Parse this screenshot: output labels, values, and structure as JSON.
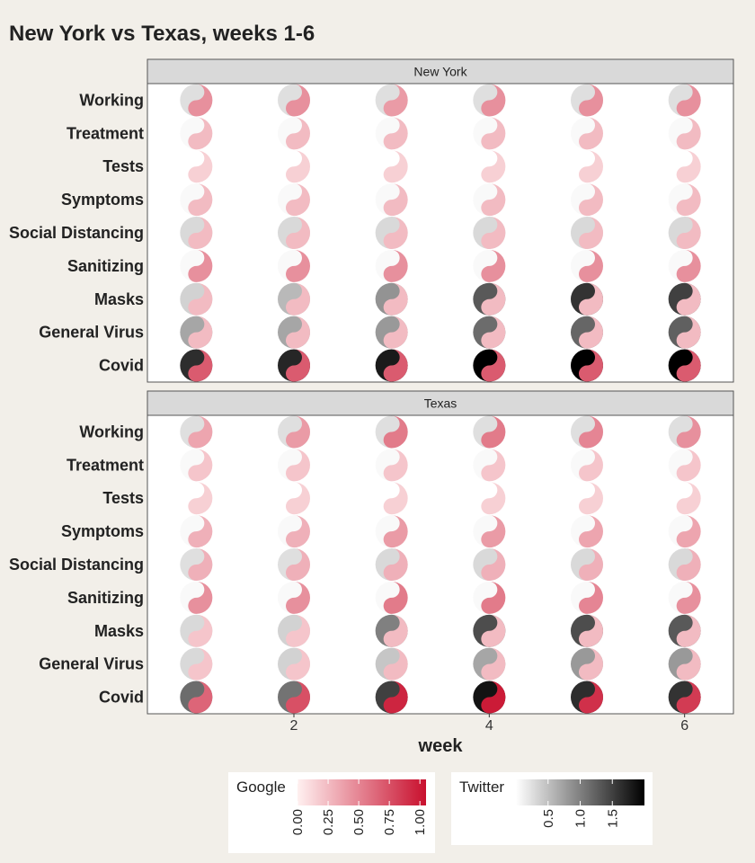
{
  "chart_data": {
    "type": "heatmap",
    "title": "New York vs Texas, weeks 1-6",
    "xlabel": "week",
    "x": [
      1,
      2,
      3,
      4,
      5,
      6
    ],
    "x_ticks": [
      2,
      4,
      6
    ],
    "rows": [
      "Working",
      "Treatment",
      "Tests",
      "Symptoms",
      "Social Distancing",
      "Sanitizing",
      "Masks",
      "General Virus",
      "Covid"
    ],
    "panels": [
      {
        "name": "New York",
        "google": [
          [
            0.45,
            0.45,
            0.4,
            0.45,
            0.45,
            0.45
          ],
          [
            0.25,
            0.25,
            0.25,
            0.25,
            0.25,
            0.25
          ],
          [
            0.15,
            0.15,
            0.15,
            0.15,
            0.15,
            0.15
          ],
          [
            0.25,
            0.25,
            0.25,
            0.25,
            0.25,
            0.25
          ],
          [
            0.25,
            0.25,
            0.25,
            0.25,
            0.25,
            0.25
          ],
          [
            0.45,
            0.45,
            0.45,
            0.45,
            0.45,
            0.45
          ],
          [
            0.25,
            0.25,
            0.25,
            0.25,
            0.25,
            0.25
          ],
          [
            0.25,
            0.25,
            0.25,
            0.25,
            0.25,
            0.25
          ],
          [
            0.7,
            0.7,
            0.7,
            0.7,
            0.7,
            0.7
          ]
        ],
        "twitter": [
          [
            0.25,
            0.25,
            0.25,
            0.25,
            0.25,
            0.25
          ],
          [
            0.05,
            0.05,
            0.05,
            0.05,
            0.05,
            0.05
          ],
          [
            0.0,
            0.0,
            0.0,
            0.0,
            0.0,
            0.0
          ],
          [
            0.05,
            0.05,
            0.05,
            0.05,
            0.05,
            0.05
          ],
          [
            0.3,
            0.3,
            0.3,
            0.3,
            0.3,
            0.3
          ],
          [
            0.05,
            0.05,
            0.05,
            0.05,
            0.05,
            0.05
          ],
          [
            0.35,
            0.55,
            0.85,
            1.3,
            1.6,
            1.5
          ],
          [
            0.7,
            0.7,
            0.8,
            1.15,
            1.2,
            1.25
          ],
          [
            1.65,
            1.7,
            1.8,
            2.0,
            2.0,
            2.05
          ]
        ]
      },
      {
        "name": "Texas",
        "google": [
          [
            0.35,
            0.4,
            0.55,
            0.55,
            0.5,
            0.45
          ],
          [
            0.2,
            0.2,
            0.2,
            0.2,
            0.2,
            0.2
          ],
          [
            0.15,
            0.15,
            0.15,
            0.15,
            0.15,
            0.15
          ],
          [
            0.3,
            0.3,
            0.4,
            0.4,
            0.35,
            0.35
          ],
          [
            0.3,
            0.3,
            0.3,
            0.3,
            0.3,
            0.3
          ],
          [
            0.45,
            0.45,
            0.55,
            0.55,
            0.5,
            0.45
          ],
          [
            0.2,
            0.2,
            0.25,
            0.25,
            0.25,
            0.25
          ],
          [
            0.2,
            0.2,
            0.25,
            0.25,
            0.25,
            0.25
          ],
          [
            0.65,
            0.75,
            0.95,
            1.0,
            0.9,
            0.85
          ]
        ],
        "twitter": [
          [
            0.25,
            0.25,
            0.25,
            0.25,
            0.25,
            0.25
          ],
          [
            0.05,
            0.05,
            0.05,
            0.05,
            0.05,
            0.05
          ],
          [
            0.0,
            0.0,
            0.0,
            0.0,
            0.0,
            0.0
          ],
          [
            0.05,
            0.05,
            0.05,
            0.05,
            0.05,
            0.05
          ],
          [
            0.25,
            0.25,
            0.3,
            0.3,
            0.3,
            0.3
          ],
          [
            0.05,
            0.05,
            0.05,
            0.05,
            0.05,
            0.05
          ],
          [
            0.3,
            0.35,
            1.0,
            1.4,
            1.4,
            1.3
          ],
          [
            0.3,
            0.35,
            0.45,
            0.7,
            0.8,
            0.8
          ],
          [
            1.15,
            1.1,
            1.5,
            1.85,
            1.65,
            1.6
          ]
        ]
      }
    ],
    "legend": {
      "google": {
        "title": "Google",
        "range": [
          0,
          1.05
        ],
        "ticks": [
          "0.00",
          "0.25",
          "0.50",
          "0.75",
          "1.00"
        ],
        "tick_values": [
          0,
          0.25,
          0.5,
          0.75,
          1.0
        ],
        "colors": [
          "#fff0f0",
          "#c8102e"
        ]
      },
      "twitter": {
        "title": "Twitter",
        "range": [
          0,
          2.0
        ],
        "ticks": [
          "0.5",
          "1.0",
          "1.5"
        ],
        "tick_values": [
          0.5,
          1.0,
          1.5
        ],
        "colors": [
          "#ffffff",
          "#000000"
        ]
      },
      "placement": "bottom"
    },
    "panel_strip_color": "#d9d9d9",
    "panel_background": "#ffffff",
    "page_background": "#f2efe9"
  }
}
